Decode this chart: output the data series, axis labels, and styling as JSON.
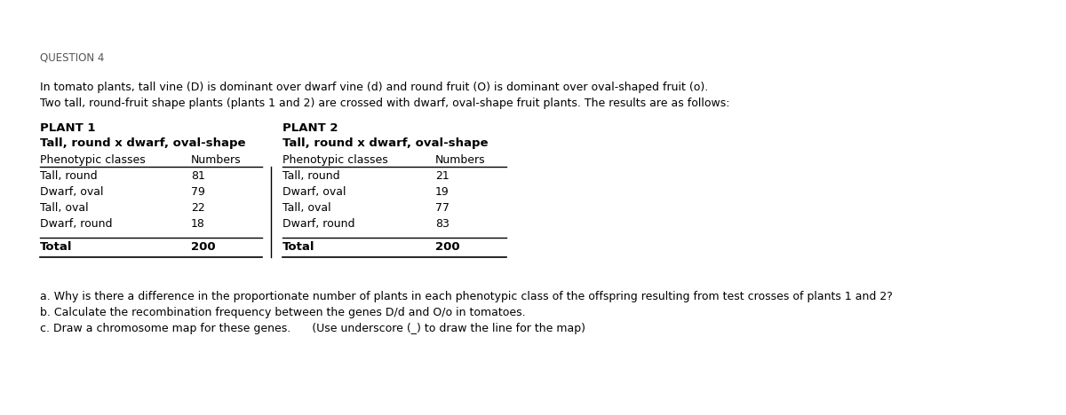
{
  "background_color": "#ffffff",
  "question_header": "QUESTION 4",
  "intro_line1": "In tomato plants, tall vine (D) is dominant over dwarf vine (d) and round fruit (O) is dominant over oval-shaped fruit (o).",
  "intro_line2": "Two tall, round-fruit shape plants (plants 1 and 2) are crossed with dwarf, oval-shape fruit plants. The results are as follows:",
  "plant1_header": "PLANT 1",
  "plant1_cross": "Tall, round x dwarf, oval-shape",
  "plant1_col1_header": "Phenotypic classes",
  "plant1_col2_header": "Numbers",
  "plant1_rows": [
    [
      "Tall, round",
      "81"
    ],
    [
      "Dwarf, oval",
      "79"
    ],
    [
      "Tall, oval",
      "22"
    ],
    [
      "Dwarf, round",
      "18"
    ]
  ],
  "plant1_total_label": "Total",
  "plant1_total_value": "200",
  "plant2_header": "PLANT 2",
  "plant2_cross": "Tall, round x dwarf, oval-shape",
  "plant2_col1_header": "Phenotypic classes",
  "plant2_col2_header": "Numbers",
  "plant2_rows": [
    [
      "Tall, round",
      "21"
    ],
    [
      "Dwarf, oval",
      "19"
    ],
    [
      "Tall, oval",
      "77"
    ],
    [
      "Dwarf, round",
      "83"
    ]
  ],
  "plant2_total_label": "Total",
  "plant2_total_value": "200",
  "question_a": "a. Why is there a difference in the proportionate number of plants in each phenotypic class of the offspring resulting from test crosses of plants 1 and 2?",
  "question_b": "b. Calculate the recombination frequency between the genes D/d and O/o in tomatoes.",
  "question_c": "c. Draw a chromosome map for these genes.      (Use underscore (_) to draw the line for the map)"
}
